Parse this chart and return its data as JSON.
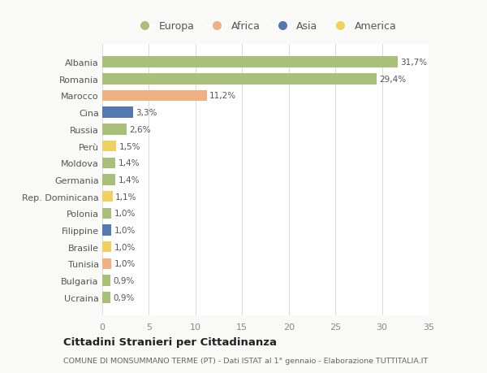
{
  "countries": [
    "Ucraina",
    "Bulgaria",
    "Tunisia",
    "Brasile",
    "Filippine",
    "Polonia",
    "Rep. Dominicana",
    "Germania",
    "Moldova",
    "Perù",
    "Russia",
    "Cina",
    "Marocco",
    "Romania",
    "Albania"
  ],
  "values": [
    0.9,
    0.9,
    1.0,
    1.0,
    1.0,
    1.0,
    1.1,
    1.4,
    1.4,
    1.5,
    2.6,
    3.3,
    11.2,
    29.4,
    31.7
  ],
  "labels": [
    "0,9%",
    "0,9%",
    "1,0%",
    "1,0%",
    "1,0%",
    "1,0%",
    "1,1%",
    "1,4%",
    "1,4%",
    "1,5%",
    "2,6%",
    "3,3%",
    "11,2%",
    "29,4%",
    "31,7%"
  ],
  "colors": [
    "#a8c07a",
    "#a8c07a",
    "#f0b080",
    "#f0d060",
    "#5578b0",
    "#a8c07a",
    "#f0d060",
    "#a8c07a",
    "#a8c07a",
    "#f0d060",
    "#a8c07a",
    "#5578b0",
    "#f0b080",
    "#a8c07a",
    "#a8c07a"
  ],
  "legend_labels": [
    "Europa",
    "Africa",
    "Asia",
    "America"
  ],
  "legend_colors": [
    "#a8c07a",
    "#f0b080",
    "#5578b0",
    "#f0d060"
  ],
  "title": "Cittadini Stranieri per Cittadinanza",
  "subtitle": "COMUNE DI MONSUMMANO TERME (PT) - Dati ISTAT al 1° gennaio - Elaborazione TUTTITALIA.IT",
  "xlim": [
    0,
    35
  ],
  "xticks": [
    0,
    5,
    10,
    15,
    20,
    25,
    30,
    35
  ],
  "background_color": "#f9f9f7",
  "plot_bg_color": "#ffffff",
  "grid_color": "#dddddd",
  "bar_height": 0.65
}
